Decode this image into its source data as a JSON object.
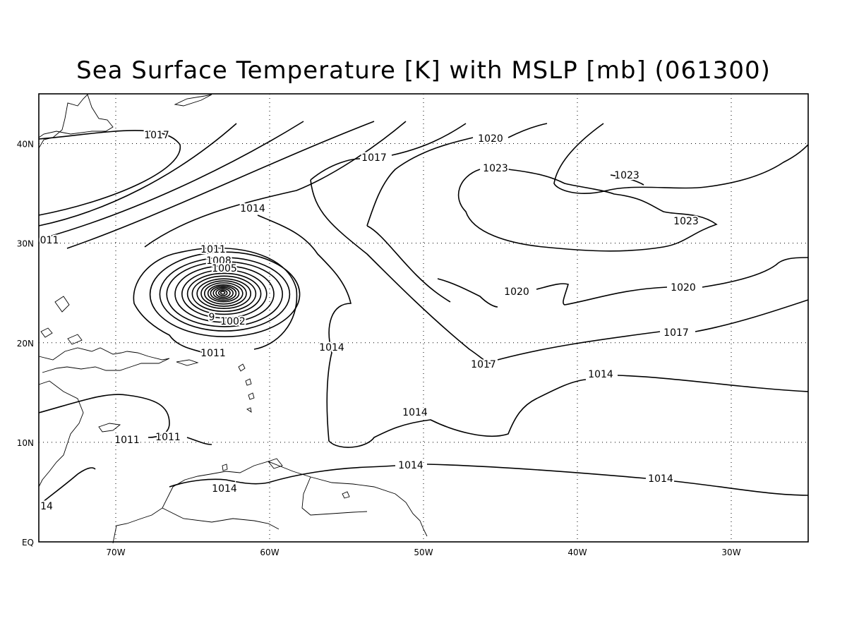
{
  "title": "Sea Surface Temperature [K] with MSLP [mb] (061300)",
  "axes": {
    "lat_ticks": [
      "EQ",
      "10N",
      "20N",
      "30N",
      "40N"
    ],
    "lon_ticks": [
      "70W",
      "60W",
      "50W",
      "40W",
      "30W"
    ]
  },
  "contour_labels": [
    {
      "text": "1017"
    },
    {
      "text": "011"
    },
    {
      "text": "1011"
    },
    {
      "text": "1014"
    },
    {
      "text": "1011"
    },
    {
      "text": "1008"
    },
    {
      "text": "1005"
    },
    {
      "text": "1002"
    },
    {
      "text": "9"
    },
    {
      "text": "1011"
    },
    {
      "text": "1014"
    },
    {
      "text": "1017"
    },
    {
      "text": "1020"
    },
    {
      "text": "1023"
    },
    {
      "text": "1023"
    },
    {
      "text": "1023"
    },
    {
      "text": "1020"
    },
    {
      "text": "1020"
    },
    {
      "text": "1017"
    },
    {
      "text": "1017"
    },
    {
      "text": "1014"
    },
    {
      "text": "1014"
    },
    {
      "text": "1011"
    },
    {
      "text": "1014"
    },
    {
      "text": "1014"
    },
    {
      "text": "1014"
    },
    {
      "text": "14"
    }
  ],
  "chart_data": {
    "type": "contour-map",
    "title": "Sea Surface Temperature [K] with MSLP [mb] (061300)",
    "xlim": [
      -75,
      -25
    ],
    "ylim": [
      0,
      45
    ],
    "x_ticks": [
      "70W",
      "60W",
      "50W",
      "40W",
      "30W"
    ],
    "y_ticks": [
      "EQ",
      "10N",
      "20N",
      "30N",
      "40N"
    ],
    "grid": true,
    "contour_levels_mb": [
      1002,
      1005,
      1008,
      1011,
      1014,
      1017,
      1020,
      1023
    ],
    "low_center": {
      "lon": -63,
      "lat": 25
    }
  }
}
